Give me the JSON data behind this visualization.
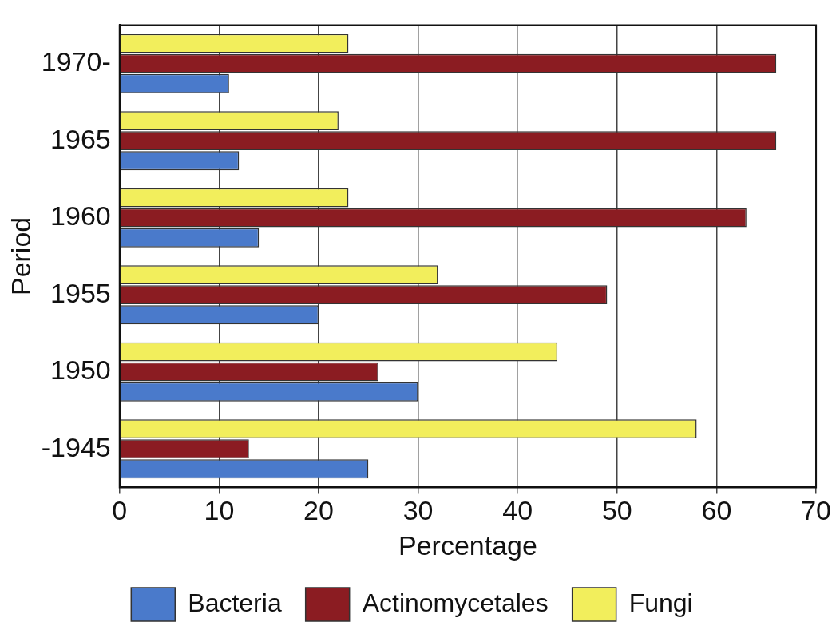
{
  "chart_data": {
    "type": "bar",
    "orientation": "horizontal",
    "xlabel": "Percentage",
    "ylabel": "Period",
    "categories": [
      "1970-",
      "1965",
      "1960",
      "1955",
      "1950",
      "-1945"
    ],
    "series": [
      {
        "name": "Fungi",
        "color": "#f2ee5c",
        "values": [
          23,
          22,
          23,
          32,
          44,
          58
        ]
      },
      {
        "name": "Actinomycetales",
        "color": "#8b1c22",
        "values": [
          66,
          66,
          63,
          49,
          26,
          13
        ]
      },
      {
        "name": "Bacteria",
        "color": "#4a7acb",
        "values": [
          11,
          12,
          14,
          20,
          30,
          25
        ]
      }
    ],
    "xlim": [
      0,
      70
    ],
    "xticks": [
      0,
      10,
      20,
      30,
      40,
      50,
      60,
      70
    ],
    "grid": "x",
    "legend": "bottom"
  }
}
